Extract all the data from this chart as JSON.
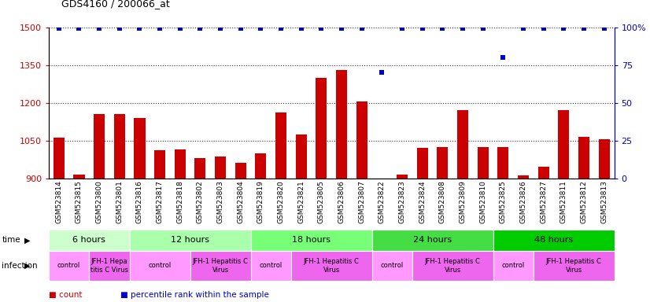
{
  "title": "GDS4160 / 200066_at",
  "samples": [
    "GSM523814",
    "GSM523815",
    "GSM523800",
    "GSM523801",
    "GSM523816",
    "GSM523817",
    "GSM523818",
    "GSM523802",
    "GSM523803",
    "GSM523804",
    "GSM523819",
    "GSM523820",
    "GSM523821",
    "GSM523805",
    "GSM523806",
    "GSM523807",
    "GSM523822",
    "GSM523823",
    "GSM523824",
    "GSM523808",
    "GSM523809",
    "GSM523810",
    "GSM523825",
    "GSM523826",
    "GSM523827",
    "GSM523811",
    "GSM523812",
    "GSM523813"
  ],
  "counts": [
    1060,
    915,
    1155,
    1155,
    1140,
    1010,
    1015,
    980,
    985,
    960,
    1000,
    1160,
    1075,
    1300,
    1330,
    1205,
    890,
    915,
    1020,
    1025,
    1170,
    1025,
    1025,
    910,
    945,
    1170,
    1065,
    1055
  ],
  "percentile": [
    99,
    99,
    99,
    99,
    99,
    99,
    99,
    99,
    99,
    99,
    99,
    99,
    99,
    99,
    99,
    99,
    70,
    99,
    99,
    99,
    99,
    99,
    80,
    99,
    99,
    99,
    99,
    99
  ],
  "ylim_left": [
    900,
    1500
  ],
  "ylim_right": [
    0,
    100
  ],
  "yticks_left": [
    900,
    1050,
    1200,
    1350,
    1500
  ],
  "yticks_right": [
    0,
    25,
    50,
    75,
    100
  ],
  "bar_color": "#cc0000",
  "dot_color": "#0000cc",
  "time_groups": [
    {
      "label": "6 hours",
      "start": 0,
      "end": 4,
      "color": "#ccffcc"
    },
    {
      "label": "12 hours",
      "start": 4,
      "end": 10,
      "color": "#aaffaa"
    },
    {
      "label": "18 hours",
      "start": 10,
      "end": 16,
      "color": "#77ff77"
    },
    {
      "label": "24 hours",
      "start": 16,
      "end": 22,
      "color": "#44dd44"
    },
    {
      "label": "48 hours",
      "start": 22,
      "end": 28,
      "color": "#00cc00"
    }
  ],
  "infection_groups": [
    {
      "label": "control",
      "start": 0,
      "end": 2,
      "color": "#ff99ff"
    },
    {
      "label": "JFH-1 Hepa\ntitis C Virus",
      "start": 2,
      "end": 4,
      "color": "#ee66ee"
    },
    {
      "label": "control",
      "start": 4,
      "end": 7,
      "color": "#ff99ff"
    },
    {
      "label": "JFH-1 Hepatitis C\nVirus",
      "start": 7,
      "end": 10,
      "color": "#ee66ee"
    },
    {
      "label": "control",
      "start": 10,
      "end": 12,
      "color": "#ff99ff"
    },
    {
      "label": "JFH-1 Hepatitis C\nVirus",
      "start": 12,
      "end": 16,
      "color": "#ee66ee"
    },
    {
      "label": "control",
      "start": 16,
      "end": 18,
      "color": "#ff99ff"
    },
    {
      "label": "JFH-1 Hepatitis C\nVirus",
      "start": 18,
      "end": 22,
      "color": "#ee66ee"
    },
    {
      "label": "control",
      "start": 22,
      "end": 24,
      "color": "#ff99ff"
    },
    {
      "label": "JFH-1 Hepatitis C\nVirus",
      "start": 24,
      "end": 28,
      "color": "#ee66ee"
    }
  ],
  "legend_count": "count",
  "legend_percentile": "percentile rank within the sample",
  "bg_color": "#ffffff",
  "dot_line_color": "#333333"
}
